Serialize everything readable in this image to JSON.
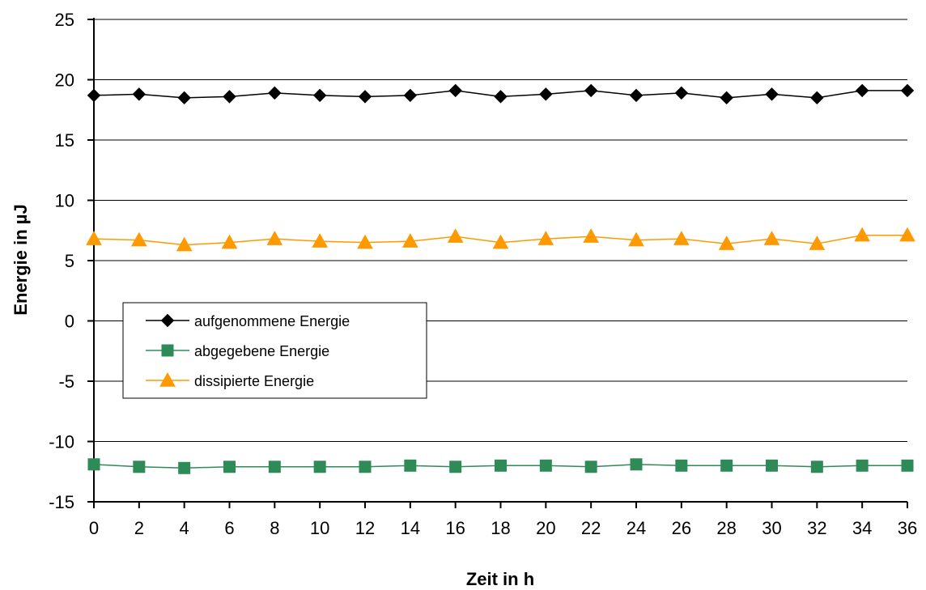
{
  "chart_data": {
    "type": "line",
    "xlabel": "Zeit in h",
    "ylabel": "Energie in µJ",
    "x": [
      0,
      2,
      4,
      6,
      8,
      10,
      12,
      14,
      16,
      18,
      20,
      22,
      24,
      26,
      28,
      30,
      32,
      34,
      36
    ],
    "xticks": [
      "0",
      "2",
      "4",
      "6",
      "8",
      "10",
      "12",
      "14",
      "16",
      "18",
      "20",
      "22",
      "24",
      "26",
      "28",
      "30",
      "32",
      "34",
      "36"
    ],
    "ylim": [
      -15,
      25
    ],
    "yticks": [
      "-15",
      "-10",
      "-5",
      "0",
      "5",
      "10",
      "15",
      "20",
      "25"
    ],
    "grid": "horizontal",
    "legend_position": "center-left",
    "series": [
      {
        "name": "aufgenommene Energie",
        "color": "#000000",
        "marker": "diamond",
        "values": [
          18.7,
          18.8,
          18.5,
          18.6,
          18.9,
          18.7,
          18.6,
          18.7,
          19.1,
          18.6,
          18.8,
          19.1,
          18.7,
          18.9,
          18.5,
          18.8,
          18.5,
          19.1,
          19.1
        ]
      },
      {
        "name": "abgegebene Energie",
        "color": "#2e8b57",
        "marker": "square",
        "values": [
          -11.9,
          -12.1,
          -12.2,
          -12.1,
          -12.1,
          -12.1,
          -12.1,
          -12.0,
          -12.1,
          -12.0,
          -12.0,
          -12.1,
          -11.9,
          -12.0,
          -12.0,
          -12.0,
          -12.1,
          -12.0,
          -12.0
        ]
      },
      {
        "name": "dissipierte Energie",
        "color": "#ff9900",
        "marker": "triangle",
        "values": [
          6.8,
          6.7,
          6.3,
          6.5,
          6.8,
          6.6,
          6.5,
          6.6,
          7.0,
          6.5,
          6.8,
          7.0,
          6.7,
          6.8,
          6.4,
          6.8,
          6.4,
          7.1,
          7.1
        ]
      }
    ]
  }
}
